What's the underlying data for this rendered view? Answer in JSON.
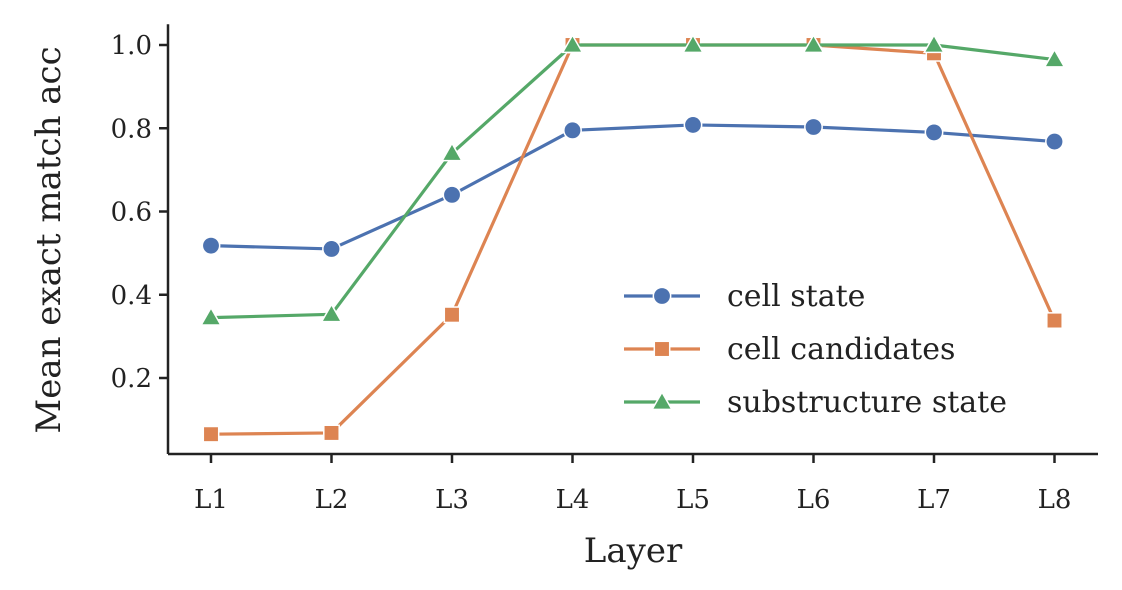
{
  "chart_data": {
    "type": "line",
    "categories": [
      "L1",
      "L2",
      "L3",
      "L4",
      "L5",
      "L6",
      "L7",
      "L8"
    ],
    "xlabel": "Layer",
    "ylabel": "Mean exact match acc",
    "ylim": [
      0.02,
      1.05
    ],
    "yticks": [
      0.2,
      0.4,
      0.6,
      0.8,
      1.0
    ],
    "ytick_labels": [
      "0.2",
      "0.4",
      "0.6",
      "0.8",
      "1.0"
    ],
    "grid": false,
    "legend_position": "lower-right",
    "series": [
      {
        "name": "cell state",
        "marker": "circle",
        "color": "#4c72b0",
        "values": [
          0.518,
          0.51,
          0.64,
          0.795,
          0.808,
          0.803,
          0.79,
          0.768
        ]
      },
      {
        "name": "cell candidates",
        "marker": "square",
        "color": "#dd8452",
        "values": [
          0.065,
          0.068,
          0.352,
          1.0,
          1.0,
          1.0,
          0.98,
          0.338
        ]
      },
      {
        "name": "substructure state",
        "marker": "triangle",
        "color": "#55a868",
        "values": [
          0.345,
          0.353,
          0.74,
          1.0,
          1.0,
          1.0,
          1.0,
          0.965
        ]
      }
    ]
  }
}
